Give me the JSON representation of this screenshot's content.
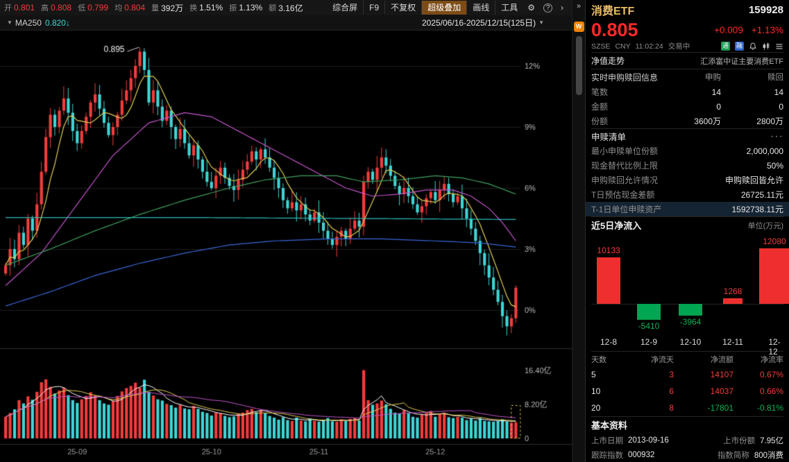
{
  "misc": {
    "logo_text": "W"
  },
  "toolbar": {
    "stats": [
      {
        "label": "开",
        "value": "0.801"
      },
      {
        "label": "高",
        "value": "0.808"
      },
      {
        "label": "低",
        "value": "0.799"
      },
      {
        "label": "均",
        "value": "0.804"
      },
      {
        "label": "量",
        "value": "392万"
      },
      {
        "label": "换",
        "value": "1.51%"
      },
      {
        "label": "振",
        "value": "1.13%"
      },
      {
        "label": "额",
        "value": "3.16亿"
      }
    ],
    "menu": {
      "composite": "综合屏",
      "f9": "F9",
      "adjust": "不复权",
      "overlay": "超级叠加",
      "draw": "画线",
      "tools": "工具"
    },
    "icons": {
      "gear": "⚙",
      "help": "?",
      "chevron": "›",
      "caret": "▼",
      "collapse": "»",
      "more": "···"
    },
    "sub": {
      "ma_name": "MA250",
      "ma_value": "0.820↓",
      "date_range": "2025/06/16-2025/12/15(125日)"
    }
  },
  "chart_data": [
    {
      "type": "candlestick",
      "symbol": "消费ETF 159928",
      "timeframe": "日K 2025/06/16 - 2025/12/15 (125日)",
      "y_unit": "percent change vs period base",
      "y_ticks": [
        "12%",
        "9%",
        "6%",
        "3%",
        "0%"
      ],
      "y_tick_values": [
        12,
        9,
        6,
        3,
        0
      ],
      "volume_ticks": [
        "16.40亿",
        "8.20亿",
        "0"
      ],
      "volume_tick_values": [
        16.4,
        8.2,
        0
      ],
      "peak_annotation": {
        "text": "0.895",
        "day": 30,
        "pct": 12.7
      },
      "month_labels": [
        {
          "text": "25-09",
          "day": 16
        },
        {
          "text": "25-10",
          "day": 46
        },
        {
          "text": "25-11",
          "day": 70
        },
        {
          "text": "25-12",
          "day": 96
        }
      ],
      "up_color": "#f23c3c",
      "down_color": "#3fd4d4",
      "closes_pct": [
        2.2,
        3.0,
        2.5,
        3.8,
        3.2,
        4.5,
        3.9,
        5.2,
        6.8,
        8.5,
        9.6,
        9.0,
        9.8,
        10.4,
        9.7,
        8.8,
        8.2,
        8.8,
        9.5,
        10.2,
        10.6,
        9.9,
        9.2,
        8.6,
        9.0,
        9.6,
        10.3,
        10.8,
        11.4,
        12.0,
        12.7,
        11.8,
        10.2,
        10.8,
        10.0,
        9.3,
        9.8,
        9.0,
        8.4,
        8.9,
        8.2,
        7.6,
        8.1,
        7.4,
        6.8,
        6.3,
        6.0,
        6.6,
        7.0,
        6.5,
        6.1,
        5.9,
        6.4,
        6.9,
        7.3,
        7.8,
        7.4,
        7.9,
        7.5,
        7.0,
        6.5,
        6.0,
        5.4,
        5.0,
        5.3,
        4.9,
        5.2,
        4.7,
        4.4,
        4.8,
        4.3,
        3.9,
        3.5,
        3.2,
        3.6,
        3.9,
        3.5,
        4.0,
        4.4,
        4.1,
        6.3,
        6.8,
        6.4,
        7.0,
        7.5,
        7.1,
        6.6,
        6.1,
        5.7,
        6.0,
        5.6,
        5.2,
        4.8,
        5.1,
        5.5,
        5.8,
        5.4,
        5.9,
        6.2,
        5.7,
        5.3,
        5.6,
        5.0,
        4.5,
        4.0,
        3.4,
        2.8,
        2.2,
        1.6,
        1.0,
        0.4,
        -0.3,
        -0.8,
        -0.4,
        1.1
      ],
      "volumes_yi": [
        5.2,
        6.1,
        7.0,
        9.2,
        8.4,
        10.1,
        9.3,
        11.2,
        13.5,
        14.2,
        12.4,
        10.8,
        11.5,
        12.2,
        10.4,
        9.2,
        8.5,
        9.4,
        10.2,
        11.1,
        10.3,
        9.2,
        8.4,
        8.1,
        9.0,
        10.2,
        11.3,
        12.1,
        12.6,
        13.4,
        12.2,
        14.1,
        11.2,
        10.3,
        9.4,
        9.1,
        8.3,
        8.0,
        7.4,
        8.1,
        7.2,
        7.0,
        7.8,
        7.1,
        6.4,
        6.1,
        5.5,
        6.2,
        6.0,
        5.4,
        5.1,
        5.3,
        6.0,
        6.2,
        6.8,
        7.1,
        6.3,
        6.9,
        6.1,
        5.4,
        5.0,
        4.5,
        5.1,
        4.4,
        4.2,
        5.0,
        4.3,
        4.1,
        4.8,
        4.2,
        4.0,
        4.3,
        4.9,
        4.1,
        4.0,
        4.6,
        4.2,
        4.7,
        4.9,
        4.3,
        16.4,
        9.2,
        8.1,
        8.4,
        9.1,
        8.2,
        7.1,
        6.2,
        6.0,
        6.8,
        6.1,
        5.2,
        5.0,
        5.8,
        6.1,
        6.6,
        5.2,
        5.9,
        6.2,
        5.1,
        4.9,
        5.2,
        5.0,
        4.4,
        4.8,
        4.3,
        4.9,
        4.2,
        4.1,
        4.0,
        4.2,
        4.6,
        4.1,
        3.8,
        3.9
      ],
      "ma_lines": [
        {
          "name": "MA5",
          "color": "#e3cf56",
          "window": 6
        },
        {
          "name": "MA25",
          "color": "#c455cc",
          "keypoints": [
            [
              0,
              1.2
            ],
            [
              8,
              2.8
            ],
            [
              16,
              5.2
            ],
            [
              24,
              7.6
            ],
            [
              32,
              9.2
            ],
            [
              40,
              9.7
            ],
            [
              46,
              9.5
            ],
            [
              52,
              8.8
            ],
            [
              58,
              8.1
            ],
            [
              64,
              7.4
            ],
            [
              70,
              6.7
            ],
            [
              76,
              6.0
            ],
            [
              82,
              5.6
            ],
            [
              88,
              5.7
            ],
            [
              94,
              5.9
            ],
            [
              100,
              5.9
            ],
            [
              104,
              5.6
            ],
            [
              108,
              5.0
            ],
            [
              111,
              4.3
            ],
            [
              114,
              3.4
            ]
          ]
        },
        {
          "name": "MA60",
          "color": "#3fa15f",
          "keypoints": [
            [
              0,
              2.2
            ],
            [
              10,
              3.0
            ],
            [
              20,
              3.9
            ],
            [
              30,
              4.7
            ],
            [
              40,
              5.4
            ],
            [
              50,
              6.0
            ],
            [
              58,
              6.4
            ],
            [
              66,
              6.6
            ],
            [
              74,
              6.6
            ],
            [
              80,
              6.3
            ],
            [
              88,
              6.4
            ],
            [
              96,
              6.6
            ],
            [
              102,
              6.5
            ],
            [
              108,
              6.2
            ],
            [
              114,
              5.7
            ]
          ]
        },
        {
          "name": "MA120",
          "color": "#3a68d8",
          "keypoints": [
            [
              0,
              0.2
            ],
            [
              10,
              0.9
            ],
            [
              20,
              1.7
            ],
            [
              30,
              2.3
            ],
            [
              40,
              2.8
            ],
            [
              50,
              3.2
            ],
            [
              60,
              3.4
            ],
            [
              72,
              3.5
            ],
            [
              84,
              3.5
            ],
            [
              96,
              3.4
            ],
            [
              106,
              3.3
            ],
            [
              114,
              3.1
            ]
          ]
        },
        {
          "name": "MA250",
          "color": "#2fbcbc",
          "keypoints": [
            [
              0,
              4.55
            ],
            [
              40,
              4.55
            ],
            [
              80,
              4.5
            ],
            [
              114,
              4.45
            ]
          ]
        }
      ],
      "volume_ma_colors": [
        "#ffffff",
        "#e3cf56",
        "#c455cc"
      ]
    },
    {
      "type": "bar",
      "title": "近5日净流入",
      "ylabel": "万元",
      "categories": [
        "12-8",
        "12-9",
        "12-10",
        "12-11",
        "12-12"
      ],
      "values": [
        10133,
        -5410,
        -3964,
        1268,
        12080
      ],
      "value_labels": [
        "10133",
        "-5410",
        "-3964",
        "1268",
        "12080"
      ],
      "positive_color": "#ef2f2f",
      "negative_color": "#00a651"
    }
  ],
  "panel": {
    "quote": {
      "name": "消费ETF",
      "code": "159928",
      "price": "0.805",
      "change": "+0.009",
      "change_pct": "+1.13%",
      "exchange": "SZSE",
      "currency": "CNY",
      "time": "11:02:24",
      "status": "交易中",
      "badge1": "通",
      "badge2": "融"
    },
    "nav": {
      "label": "净值走势",
      "value": "汇添富中证主要消费ETF"
    },
    "realtime": {
      "title": "实时申购赎回信息",
      "col_buy": "申购",
      "col_sell": "赎回",
      "rows": [
        {
          "label": "笔数",
          "buy": "14",
          "sell": "14"
        },
        {
          "label": "金额",
          "buy": "0",
          "sell": "0"
        },
        {
          "label": "份额",
          "buy": "3600万",
          "sell": "2800万"
        }
      ]
    },
    "redemption": {
      "title": "申赎清单",
      "rows": [
        {
          "label": "最小申赎单位份额",
          "value": "2,000,000"
        },
        {
          "label": "现金替代比例上限",
          "value": "50%"
        },
        {
          "label": "申购赎回允许情况",
          "value": "申购赎回皆允许"
        },
        {
          "label": "T日预估现金差额",
          "value": "26725.11元"
        },
        {
          "label": "T-1日单位申赎资产",
          "value": "1592738.11元"
        }
      ]
    },
    "flow": {
      "title": "近5日净流入",
      "unit": "单位(万元)"
    },
    "flow_table": {
      "headers": [
        "天数",
        "净流天",
        "净流额",
        "净流率"
      ],
      "rows": [
        [
          "5",
          "3",
          "14107",
          "0.67%"
        ],
        [
          "10",
          "6",
          "14037",
          "0.66%"
        ],
        [
          "20",
          "8",
          "-17801",
          "-0.81%"
        ]
      ]
    },
    "basic": {
      "title": "基本资料",
      "rows": [
        {
          "l1": "上市日期",
          "v1": "2013-09-16",
          "l2": "上市份额",
          "v2": "7.95亿"
        },
        {
          "l1": "跟踪指数",
          "v1": "000932",
          "l2": "指数简称",
          "v2": "800消费"
        }
      ]
    }
  }
}
